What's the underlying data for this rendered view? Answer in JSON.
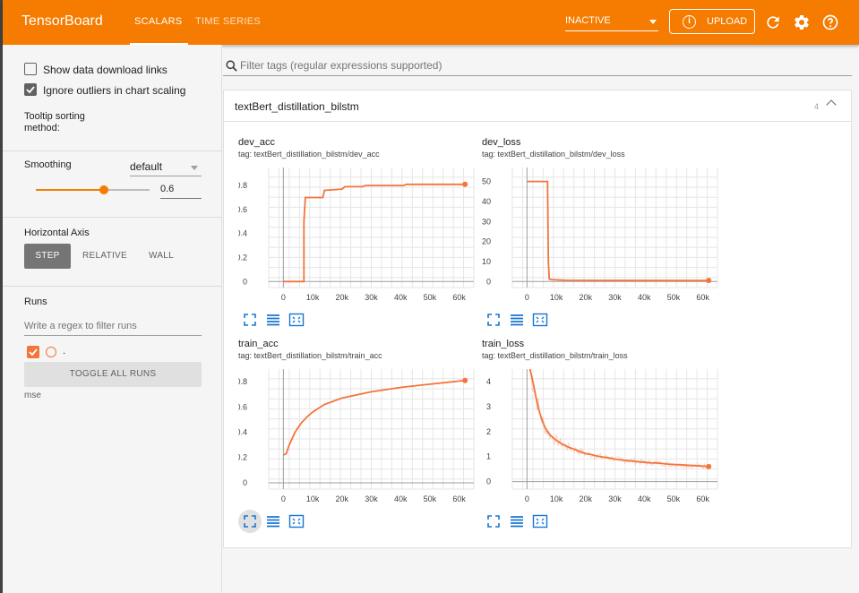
{
  "header": {
    "brand": "TensorBoard",
    "tabs": [
      {
        "label": "SCALARS",
        "active": true
      },
      {
        "label": "TIME SERIES",
        "active": false
      }
    ],
    "status": "INACTIVE",
    "upload_label": "UPLOAD",
    "accent": "#f57c00"
  },
  "sidebar": {
    "show_download_links": "Show data download links",
    "ignore_outliers": "Ignore outliers in chart scaling",
    "tooltip_sorting_label": "Tooltip sorting method:",
    "tooltip_sorting_value": "default",
    "smoothing_label": "Smoothing",
    "smoothing_value": "0.6",
    "horizontal_axis_label": "Horizontal Axis",
    "axis_options": [
      "STEP",
      "RELATIVE",
      "WALL"
    ],
    "runs_label": "Runs",
    "runs_filter_placeholder": "Write a regex to filter runs",
    "run_name": ".",
    "toggle_all_label": "TOGGLE ALL RUNS",
    "footer_text": "mse"
  },
  "main": {
    "filter_placeholder": "Filter tags (regular expressions supported)",
    "group_title": "textBert_distillation_bilstm",
    "group_count": "4"
  },
  "chart_data": [
    {
      "type": "line",
      "title": "dev_acc",
      "tag": "tag: textBert_distillation_bilstm/dev_acc",
      "x_ticks": [
        "0",
        "10k",
        "20k",
        "30k",
        "40k",
        "50k",
        "60k"
      ],
      "y_ticks": [
        "0",
        "0.2",
        "0.4",
        "0.6",
        "0.8"
      ],
      "xlim": [
        -5000,
        65000
      ],
      "ylim": [
        -0.05,
        0.95
      ],
      "color": "#f4743b",
      "series": [
        {
          "x": [
            0,
            7000,
            7000,
            7500,
            13500,
            14000,
            20000,
            21000,
            27000,
            28000,
            41000,
            42000,
            62000
          ],
          "y": [
            0,
            0,
            0.5,
            0.7,
            0.7,
            0.76,
            0.77,
            0.79,
            0.79,
            0.8,
            0.8,
            0.81,
            0.81
          ]
        }
      ]
    },
    {
      "type": "line",
      "title": "dev_loss",
      "tag": "tag: textBert_distillation_bilstm/dev_loss",
      "x_ticks": [
        "0",
        "10k",
        "20k",
        "30k",
        "40k",
        "50k",
        "60k"
      ],
      "y_ticks": [
        "0",
        "10",
        "20",
        "30",
        "40",
        "50"
      ],
      "xlim": [
        -5000,
        65000
      ],
      "ylim": [
        -3,
        57
      ],
      "color": "#f4743b",
      "series": [
        {
          "x": [
            0,
            2000,
            7000,
            7300,
            7600,
            8500,
            14000,
            62000
          ],
          "y": [
            50,
            50,
            50,
            10,
            1.2,
            1,
            0.6,
            0.5
          ]
        }
      ]
    },
    {
      "type": "line",
      "title": "train_acc",
      "tag": "tag: textBert_distillation_bilstm/train_acc",
      "x_ticks": [
        "0",
        "10k",
        "20k",
        "30k",
        "40k",
        "50k",
        "60k"
      ],
      "y_ticks": [
        "0",
        "0.2",
        "0.4",
        "0.6",
        "0.8"
      ],
      "xlim": [
        -5000,
        65000
      ],
      "ylim": [
        -0.05,
        0.9
      ],
      "color": "#f4743b",
      "series": [
        {
          "x": [
            0,
            1000,
            2000,
            4000,
            6000,
            8000,
            10000,
            14000,
            20000,
            30000,
            40000,
            50000,
            62000
          ],
          "y": [
            0.22,
            0.23,
            0.3,
            0.4,
            0.47,
            0.52,
            0.56,
            0.62,
            0.67,
            0.72,
            0.755,
            0.78,
            0.81
          ]
        }
      ]
    },
    {
      "type": "line",
      "title": "train_loss",
      "tag": "tag: textBert_distillation_bilstm/train_loss",
      "x_ticks": [
        "0",
        "10k",
        "20k",
        "30k",
        "40k",
        "50k",
        "60k"
      ],
      "y_ticks": [
        "0",
        "1",
        "2",
        "3",
        "4"
      ],
      "xlim": [
        -5000,
        65000
      ],
      "ylim": [
        -0.3,
        4.5
      ],
      "color": "#f4743b",
      "series": [
        {
          "x": [
            1000,
            2000,
            3000,
            4000,
            5000,
            6000,
            7000,
            8000,
            9000,
            10000,
            12000,
            14000,
            16000,
            18000,
            20000,
            22000,
            24000,
            26000,
            28000,
            30000,
            33000,
            36000,
            39000,
            42000,
            45000,
            48000,
            51000,
            54000,
            57000,
            60000,
            62000
          ],
          "y": [
            4.5,
            4.0,
            3.4,
            2.9,
            2.5,
            2.2,
            2.0,
            1.85,
            1.75,
            1.65,
            1.5,
            1.38,
            1.3,
            1.2,
            1.12,
            1.08,
            1.02,
            0.98,
            0.95,
            0.9,
            0.85,
            0.82,
            0.78,
            0.75,
            0.74,
            0.7,
            0.68,
            0.66,
            0.64,
            0.62,
            0.6
          ]
        }
      ]
    }
  ]
}
